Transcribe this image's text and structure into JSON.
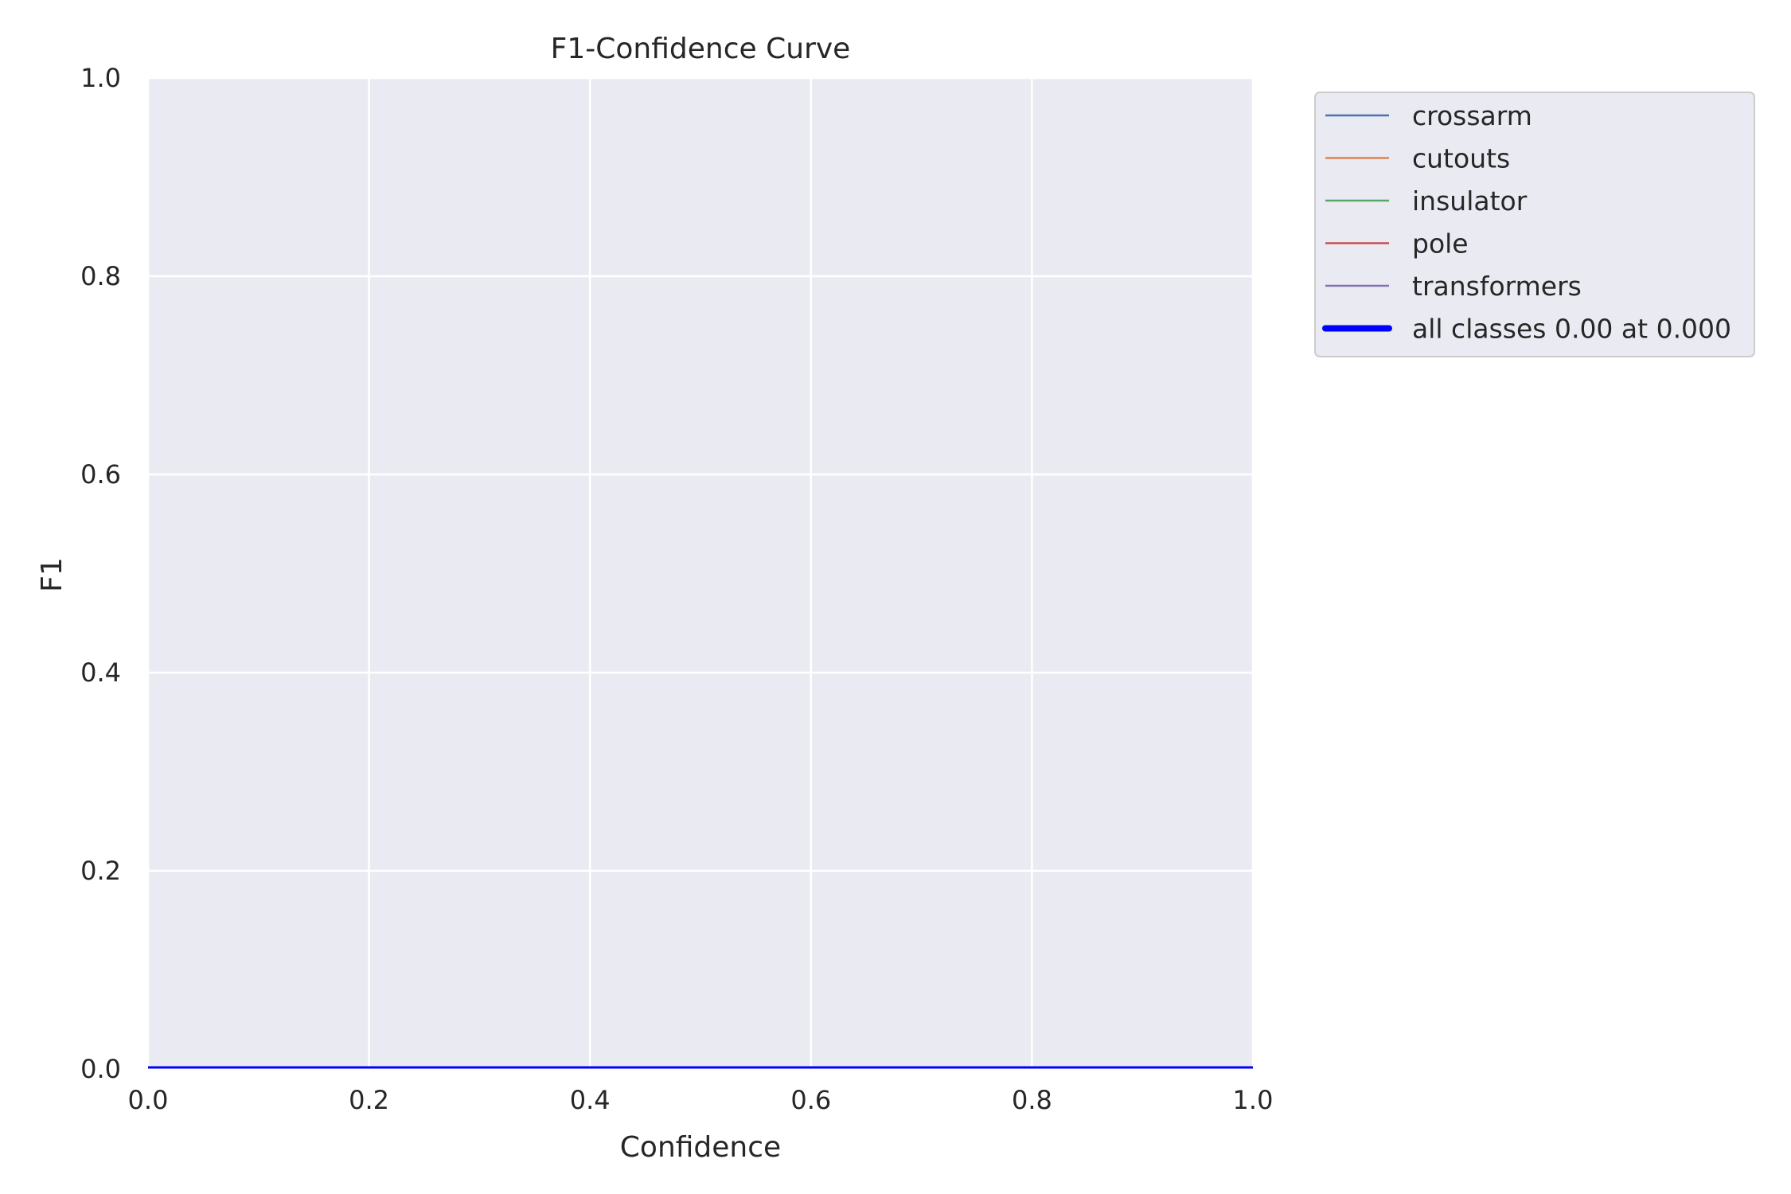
{
  "chart_data": {
    "type": "line",
    "title": "F1-Confidence Curve",
    "xlabel": "Confidence",
    "ylabel": "F1",
    "xlim": [
      0.0,
      1.0
    ],
    "ylim": [
      0.0,
      1.0
    ],
    "x_ticks": [
      "0.0",
      "0.2",
      "0.4",
      "0.6",
      "0.8",
      "1.0"
    ],
    "y_ticks": [
      "0.0",
      "0.2",
      "0.4",
      "0.6",
      "0.8",
      "1.0"
    ],
    "grid": true,
    "legend_position": "outside-top-right",
    "background_color": "#eaeaf2",
    "grid_color": "#ffffff",
    "series": [
      {
        "name": "crossarm",
        "color": "#4c72b0",
        "x": [
          0.0,
          1.0
        ],
        "y": [
          0.0,
          0.0
        ]
      },
      {
        "name": "cutouts",
        "color": "#dd8452",
        "x": [
          0.0,
          1.0
        ],
        "y": [
          0.0,
          0.0
        ]
      },
      {
        "name": "insulator",
        "color": "#55a868",
        "x": [
          0.0,
          1.0
        ],
        "y": [
          0.0,
          0.0
        ]
      },
      {
        "name": "pole",
        "color": "#c44e52",
        "x": [
          0.0,
          1.0
        ],
        "y": [
          0.0,
          0.0
        ]
      },
      {
        "name": "transformers",
        "color": "#8172b3",
        "x": [
          0.0,
          1.0
        ],
        "y": [
          0.0,
          0.0
        ]
      },
      {
        "name": "all classes 0.00 at 0.000",
        "color": "#0000ff",
        "thick": true,
        "x": [
          0.0,
          1.0
        ],
        "y": [
          0.0,
          0.0
        ]
      }
    ]
  }
}
